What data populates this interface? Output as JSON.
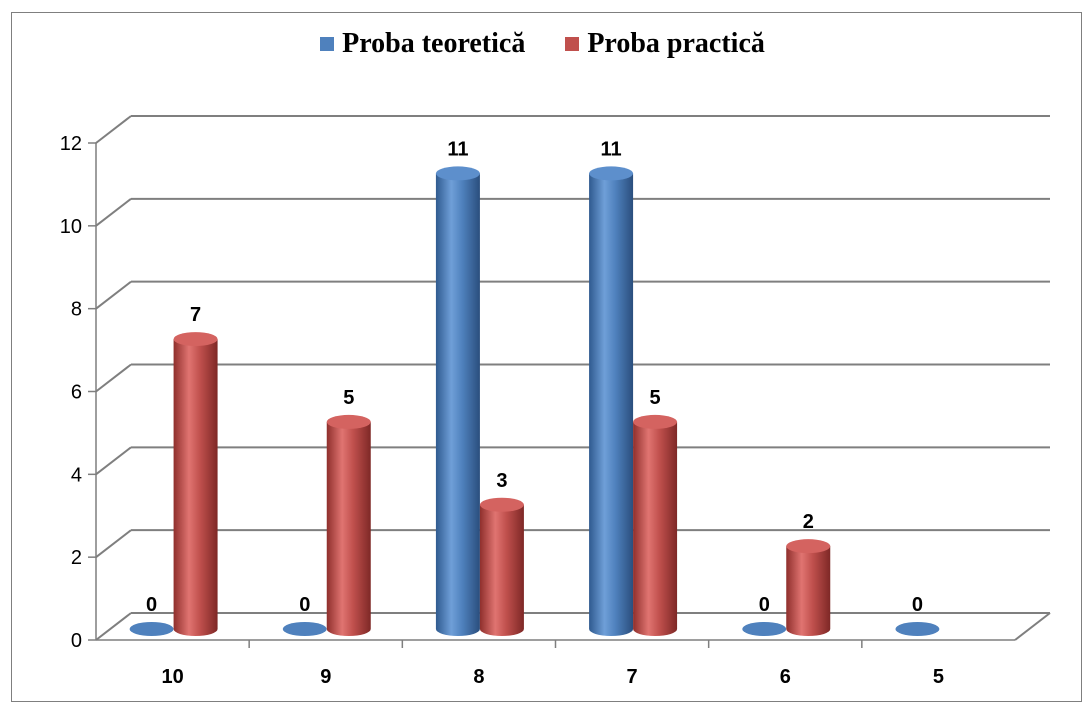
{
  "chart_data": {
    "type": "bar",
    "title": "",
    "xlabel": "",
    "ylabel": "",
    "categories": [
      "10",
      "9",
      "8",
      "7",
      "6",
      "5"
    ],
    "series": [
      {
        "name": "Proba teoretică",
        "color": "#4f81bd",
        "values": [
          0,
          0,
          11,
          11,
          0,
          0
        ]
      },
      {
        "name": "Proba practică",
        "color": "#c0504d",
        "values": [
          7,
          5,
          3,
          5,
          2,
          null
        ]
      }
    ],
    "ylim": [
      0,
      12
    ],
    "yticks": [
      "0",
      "2",
      "4",
      "6",
      "8",
      "10",
      "12"
    ],
    "data_labels": true,
    "grid": true,
    "legend_position": "top",
    "style": "3d-cylinder"
  }
}
